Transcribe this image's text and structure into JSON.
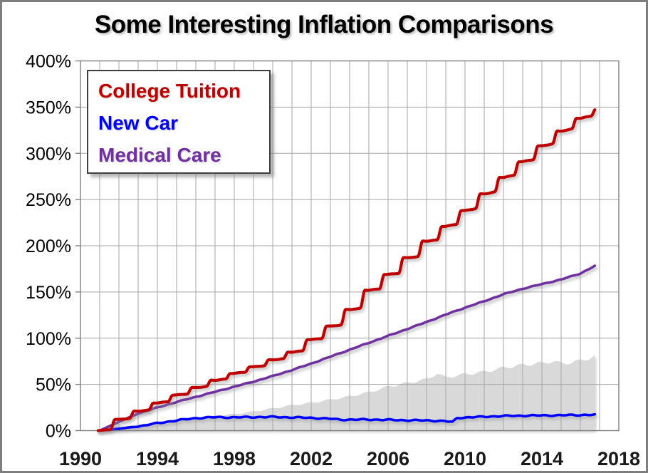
{
  "chart_data": {
    "type": "line",
    "title": "Some Interesting Inflation Comparisons",
    "xlabel": "",
    "ylabel": "",
    "xlim": [
      1990,
      2018
    ],
    "ylim": [
      0,
      400
    ],
    "y_unit": "%",
    "x_tick_labels": [
      "1990",
      "1994",
      "1998",
      "2002",
      "2006",
      "2010",
      "2014",
      "2018"
    ],
    "y_tick_labels": [
      "0%",
      "50%",
      "100%",
      "150%",
      "200%",
      "250%",
      "300%",
      "350%",
      "400%"
    ],
    "grid": {
      "vertical_every_years": 1,
      "horizontal_every_pct": 50,
      "color": "#a6a6a6"
    },
    "frame_color": "#7f7f7f",
    "data_start": 1990.92,
    "data_end": 2016.79,
    "legend_position": "top-left",
    "series": [
      {
        "id": "cpi-area",
        "name": "",
        "note": "unlabeled light-gray filled area",
        "type": "area",
        "color": "#d9d9d9",
        "legend": false,
        "start_year": 1991,
        "jan_values": [
          0,
          4,
          6.5,
          9.5,
          12,
          14,
          16,
          18,
          20.5,
          24,
          27.5,
          30,
          33.5,
          37,
          41.5,
          47.5,
          51.5,
          55.5,
          57.5,
          61,
          63.5,
          68,
          71,
          73,
          72.5,
          75.5
        ],
        "extras": [
          [
            2008.55,
            62
          ],
          [
            2008.95,
            57.5
          ],
          [
            2014.6,
            75
          ],
          [
            2015.1,
            72.5
          ]
        ],
        "end_value": 80.5,
        "seasonal_wiggle": true
      },
      {
        "id": "medical",
        "name": "Medical Care",
        "type": "line",
        "color": "#7030a0",
        "legend": true,
        "start_year": 1991,
        "jan_values": [
          0,
          9.5,
          18.5,
          25,
          31,
          36.5,
          42,
          47.5,
          53,
          59,
          65.5,
          72.5,
          80,
          87.5,
          95,
          102.5,
          110,
          117.5,
          125.5,
          133,
          140,
          147.5,
          153.5,
          158.5,
          163.5,
          170
        ],
        "extras": [],
        "end_value": 178.5,
        "wiggle": 0.35
      },
      {
        "id": "newcar",
        "name": "New Car",
        "type": "line",
        "color": "#0000ff",
        "legend": true,
        "start_year": 1991,
        "jan_values": [
          0,
          2,
          4.5,
          8,
          11,
          13.5,
          14.5,
          14.3,
          14.6,
          14.8,
          14.3,
          13.8,
          12.8,
          11.8,
          12,
          11.6,
          11.2,
          11,
          10.2,
          14.2,
          15,
          15.8,
          16.2,
          16.4,
          16.6,
          16.9
        ],
        "extras": [
          [
            2003.5,
            11.9
          ],
          [
            2009.35,
            9.2
          ],
          [
            2009.6,
            13.8
          ]
        ],
        "end_value": 17.2,
        "wiggle": 0.6
      },
      {
        "id": "tuition",
        "name": "College Tuition",
        "type": "annual-steps",
        "color": "#c00000",
        "legend": true,
        "post_step_levels": {
          "1990": 0,
          "1991": 12,
          "1992": 21,
          "1993": 30,
          "1994": 38.5,
          "1995": 46.5,
          "1996": 54.5,
          "1997": 62,
          "1998": 69,
          "1999": 76.5,
          "2000": 85,
          "2001": 98.5,
          "2002": 113,
          "2003": 131,
          "2004": 152,
          "2005": 169,
          "2006": 187,
          "2007": 205,
          "2008": 221,
          "2009": 238,
          "2010": 256,
          "2011": 274,
          "2012": 291,
          "2013": 308,
          "2014": 324,
          "2015": 338,
          "2016": 348
        },
        "end_value": 348
      }
    ]
  }
}
